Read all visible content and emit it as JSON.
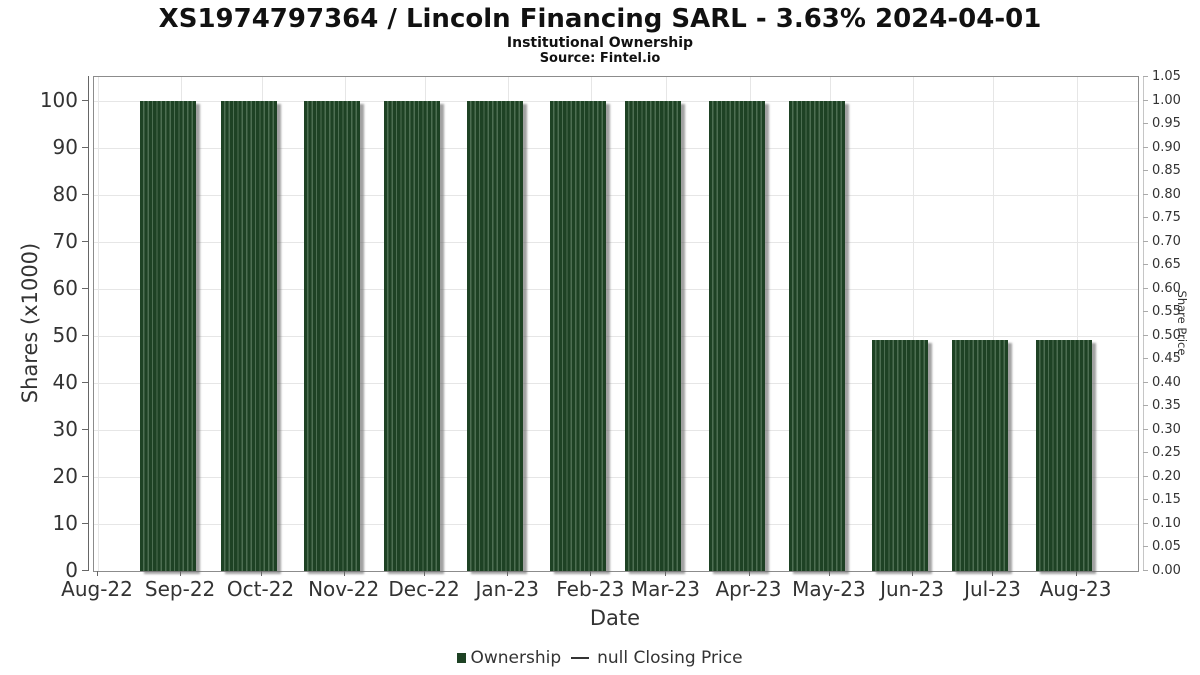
{
  "title": "XS1974797364 / Lincoln Financing SARL - 3.63% 2024-04-01",
  "subtitle": "Institutional Ownership",
  "source": "Source: Fintel.io",
  "legend": {
    "items": [
      {
        "label": "Ownership",
        "marker": "square",
        "color": "#1e4224"
      },
      {
        "label": "null Closing Price",
        "marker": "line",
        "color": "#333333"
      }
    ]
  },
  "chart_data": {
    "type": "bar",
    "title": "XS1974797364 / Lincoln Financing SARL - 3.63% 2024-04-01",
    "subtitle": "Institutional Ownership",
    "source_note": "Source: Fintel.io",
    "xlabel": "Date",
    "ylabel_left": "Shares (x1000)",
    "ylabel_right": "Share Price",
    "categories": [
      "Aug-22",
      "Sep-22",
      "Oct-22",
      "Nov-22",
      "Dec-22",
      "Jan-23",
      "Feb-23",
      "Mar-23",
      "Apr-23",
      "May-23",
      "Jun-23",
      "Jul-23",
      "Aug-23"
    ],
    "series": [
      {
        "name": "Ownership",
        "type": "bar",
        "color": "#1e4224",
        "values": [
          null,
          100,
          100,
          100,
          100,
          100,
          100,
          100,
          100,
          100,
          49,
          49,
          49
        ]
      },
      {
        "name": "null Closing Price",
        "type": "line",
        "color": "#333333",
        "values": []
      }
    ],
    "ylim_left": [
      0,
      105
    ],
    "ylim_right": [
      0,
      1.05
    ],
    "yticks_left": [
      0,
      10,
      20,
      30,
      40,
      50,
      60,
      70,
      80,
      90,
      100
    ],
    "yticks_right": [
      "0.00",
      "0.05",
      "0.10",
      "0.15",
      "0.20",
      "0.25",
      "0.30",
      "0.35",
      "0.40",
      "0.45",
      "0.50",
      "0.55",
      "0.60",
      "0.65",
      "0.70",
      "0.75",
      "0.80",
      "0.85",
      "0.90",
      "0.95",
      "1.00",
      "1.05"
    ],
    "grid": true,
    "legend_position": "bottom"
  },
  "colors": {
    "bar_fill": "#1e4224",
    "bar_stripe": "#4d6e52",
    "grid": "#e6e6e6",
    "axis": "#666666",
    "plot_border": "#8c8c8c",
    "tick_label": "#333333"
  }
}
